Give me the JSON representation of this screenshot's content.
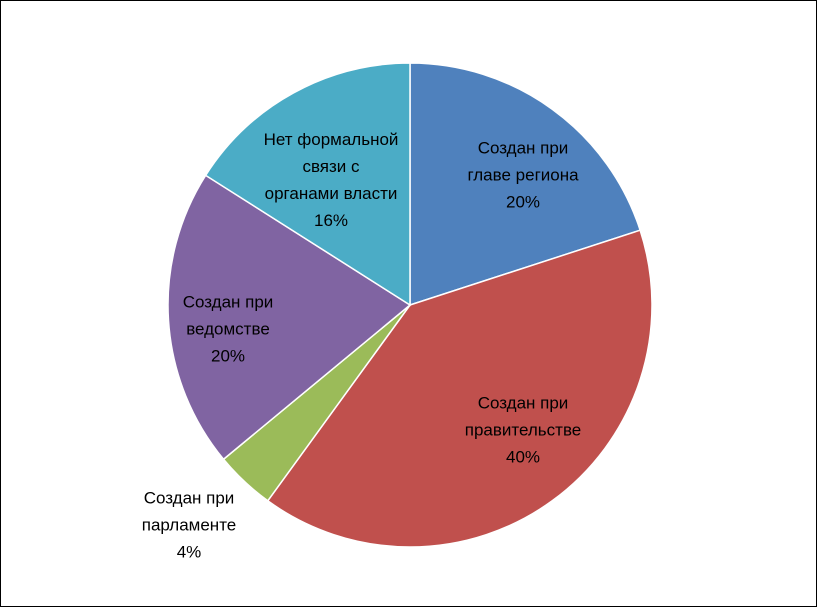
{
  "chart_data": {
    "type": "pie",
    "title": "",
    "legend": "none",
    "start_angle_deg": 0,
    "direction": "clockwise",
    "slices": [
      {
        "name": "Создан при главе региона",
        "lines": [
          "Создан при",
          "главе региона"
        ],
        "value": 20,
        "label": "20%",
        "color": "#4F81BD"
      },
      {
        "name": "Создан при правительстве",
        "lines": [
          "Создан при",
          "правительстве"
        ],
        "value": 40,
        "label": "40%",
        "color": "#C0504D"
      },
      {
        "name": "Создан при парламенте",
        "lines": [
          "Создан при",
          "парламенте"
        ],
        "value": 4,
        "label": "4%",
        "color": "#9BBB59"
      },
      {
        "name": "Создан при ведомстве",
        "lines": [
          "Создан при",
          "ведомстве"
        ],
        "value": 20,
        "label": "20%",
        "color": "#8064A2"
      },
      {
        "name": "Нет формальной связи с органами власти",
        "lines": [
          "Нет формальной",
          "связи с",
          "органами власти"
        ],
        "value": 16,
        "label": "16%",
        "color": "#4BACC6"
      }
    ]
  }
}
